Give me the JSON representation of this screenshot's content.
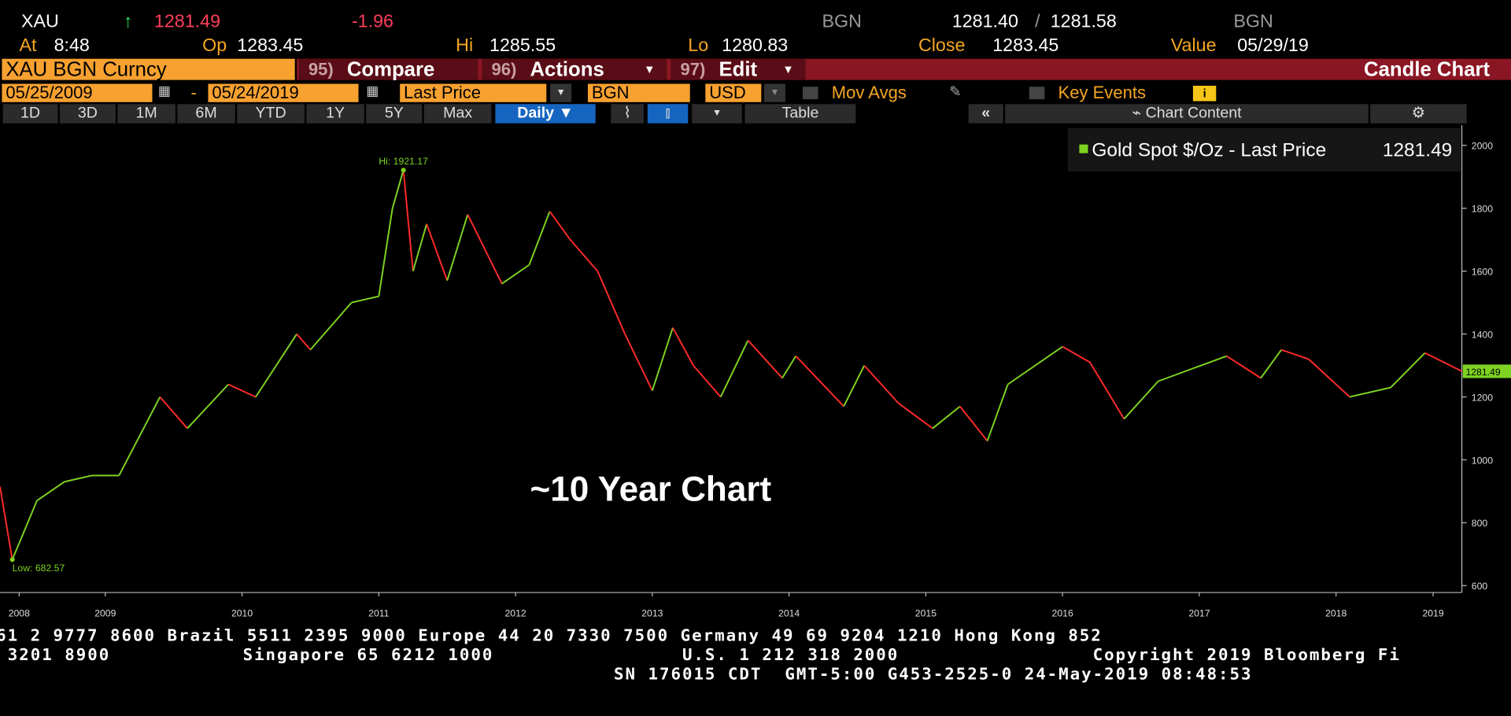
{
  "quote": {
    "symbol": "XAU",
    "arrow": "↑",
    "last": "1281.49",
    "change": "-1.96",
    "source": "BGN",
    "bid": "1281.40",
    "separator": "/",
    "ask": "1281.58",
    "ask_source": "BGN"
  },
  "stats": [
    {
      "label": "At",
      "value": "8:48"
    },
    {
      "label": "Op",
      "value": "1283.45"
    },
    {
      "label": "Hi",
      "value": "1285.55"
    },
    {
      "label": "Lo",
      "value": "1280.83"
    },
    {
      "label": "Close",
      "value": "1283.45"
    },
    {
      "label": "Value",
      "value": "05/29/19"
    }
  ],
  "menu": {
    "ticker": "XAU BGN Curncy",
    "buttons": [
      {
        "num": "95)",
        "label": "Compare"
      },
      {
        "num": "96)",
        "label": "Actions"
      },
      {
        "num": "97)",
        "label": "Edit"
      }
    ],
    "view": "Candle Chart"
  },
  "settings": {
    "start": "05/25/2009",
    "dash": "-",
    "end": "05/24/2019",
    "field": "Last Price",
    "source": "BGN",
    "currency": "USD",
    "mov_avgs": "Mov Avgs",
    "key_events": "Key Events"
  },
  "tabs": [
    "1D",
    "3D",
    "1M",
    "6M",
    "YTD",
    "1Y",
    "5Y",
    "Max"
  ],
  "toolbar": {
    "period": "Daily",
    "table": "Table",
    "chart_content": "Chart Content"
  },
  "chart_data": {
    "type": "line",
    "overlay_title": "~10 Year Chart",
    "hi_label": "Hi: 1921.17",
    "low_label": "Low: 682.57",
    "x": [
      2008.73,
      2008.82,
      2009.0,
      2009.2,
      2009.4,
      2009.6,
      2009.9,
      2010.1,
      2010.4,
      2010.6,
      2010.9,
      2011.0,
      2011.3,
      2011.5,
      2011.6,
      2011.68,
      2011.75,
      2011.85,
      2012.0,
      2012.15,
      2012.4,
      2012.6,
      2012.75,
      2012.9,
      2013.1,
      2013.3,
      2013.5,
      2013.65,
      2013.8,
      2014.0,
      2014.2,
      2014.45,
      2014.55,
      2014.9,
      2015.05,
      2015.3,
      2015.55,
      2015.75,
      2015.95,
      2016.1,
      2016.5,
      2016.7,
      2016.95,
      2017.2,
      2017.45,
      2017.7,
      2017.95,
      2018.1,
      2018.3,
      2018.6,
      2018.9,
      2019.15,
      2019.42
    ],
    "series": [
      {
        "name": "Gold Spot $/Oz - Last Price",
        "color": "#7ed321",
        "down_color": "#ff2a2a",
        "values": [
          915,
          682.57,
          870,
          930,
          950,
          950,
          1200,
          1100,
          1240,
          1200,
          1400,
          1350,
          1500,
          1520,
          1800,
          1921.17,
          1600,
          1750,
          1570,
          1780,
          1560,
          1620,
          1790,
          1700,
          1600,
          1400,
          1220,
          1420,
          1300,
          1200,
          1380,
          1260,
          1330,
          1170,
          1300,
          1180,
          1100,
          1170,
          1060,
          1240,
          1360,
          1310,
          1130,
          1250,
          1290,
          1330,
          1260,
          1350,
          1320,
          1200,
          1230,
          1340,
          1281.49
        ]
      }
    ],
    "xlim": [
      2008.73,
      2019.42
    ],
    "xticks": [
      {
        "value": 2008.87,
        "label": "2008"
      },
      {
        "value": 2009.5,
        "label": "2009"
      },
      {
        "value": 2010.5,
        "label": "2010"
      },
      {
        "value": 2011.5,
        "label": "2011"
      },
      {
        "value": 2012.5,
        "label": "2012"
      },
      {
        "value": 2013.5,
        "label": "2013"
      },
      {
        "value": 2014.5,
        "label": "2014"
      },
      {
        "value": 2015.5,
        "label": "2015"
      },
      {
        "value": 2016.5,
        "label": "2016"
      },
      {
        "value": 2017.5,
        "label": "2017"
      },
      {
        "value": 2018.5,
        "label": "2018"
      },
      {
        "value": 2019.21,
        "label": "2019"
      }
    ],
    "ylim": [
      578,
      2064
    ],
    "yticks": [
      600,
      800,
      1000,
      1200,
      1400,
      1600,
      1800,
      2000
    ]
  },
  "footer": {
    "line1": "61 2 9777 8600 Brazil 5511 2395 9000 Europe 44 20 7330 7500 Germany 49 69 9204 1210 Hong Kong 852",
    "line2": [
      "3201 8900",
      "Singapore 65 6212 1000",
      "U.S. 1 212 318 2000",
      "Copyright 2019 Bloomberg Fi"
    ],
    "line3": "SN 176015 CDT  GMT-5:00 G453-2525-0 24-May-2019 08:48:53"
  }
}
